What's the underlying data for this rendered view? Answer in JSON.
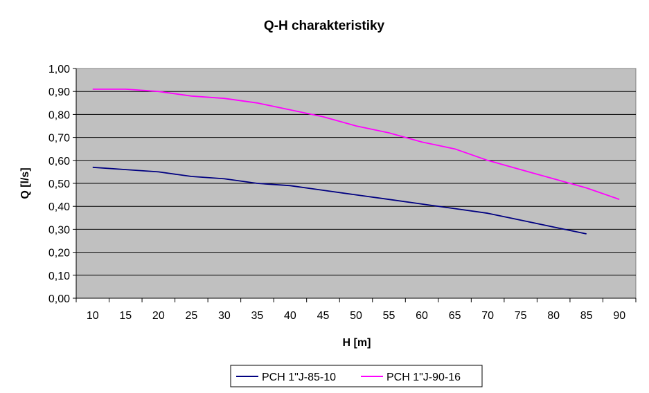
{
  "chart_data": {
    "type": "line",
    "title": "Q-H charakteristiky",
    "xlabel": "H [m]",
    "ylabel": "Q [l/s]",
    "categories": [
      10,
      15,
      20,
      25,
      30,
      35,
      40,
      45,
      50,
      55,
      60,
      65,
      70,
      75,
      80,
      85,
      90
    ],
    "x_tick_labels": [
      "10",
      "15",
      "20",
      "25",
      "30",
      "35",
      "40",
      "45",
      "50",
      "55",
      "60",
      "65",
      "70",
      "75",
      "80",
      "85",
      "90"
    ],
    "ylim": [
      0,
      1.0
    ],
    "y_ticks": [
      0,
      0.1,
      0.2,
      0.3,
      0.4,
      0.5,
      0.6,
      0.7,
      0.8,
      0.9,
      1.0
    ],
    "y_tick_labels": [
      "0,00",
      "0,10",
      "0,20",
      "0,30",
      "0,40",
      "0,50",
      "0,60",
      "0,70",
      "0,80",
      "0,90",
      "1,00"
    ],
    "grid": true,
    "plot_background": "#c0c0c0",
    "legend_position": "bottom",
    "series": [
      {
        "name": "PCH 1\"J-85-10",
        "color": "#000080",
        "x": [
          10,
          15,
          20,
          25,
          30,
          35,
          40,
          45,
          50,
          55,
          60,
          65,
          70,
          75,
          80,
          85
        ],
        "values": [
          0.57,
          0.56,
          0.55,
          0.53,
          0.52,
          0.5,
          0.49,
          0.47,
          0.45,
          0.43,
          0.41,
          0.39,
          0.37,
          0.34,
          0.31,
          0.28
        ]
      },
      {
        "name": "PCH 1\"J-90-16",
        "color": "#ff00ff",
        "x": [
          10,
          15,
          20,
          25,
          30,
          35,
          40,
          45,
          50,
          55,
          60,
          65,
          70,
          75,
          80,
          85,
          90
        ],
        "values": [
          0.91,
          0.91,
          0.9,
          0.88,
          0.87,
          0.85,
          0.82,
          0.79,
          0.75,
          0.72,
          0.68,
          0.65,
          0.6,
          0.56,
          0.52,
          0.48,
          0.43
        ]
      }
    ]
  }
}
